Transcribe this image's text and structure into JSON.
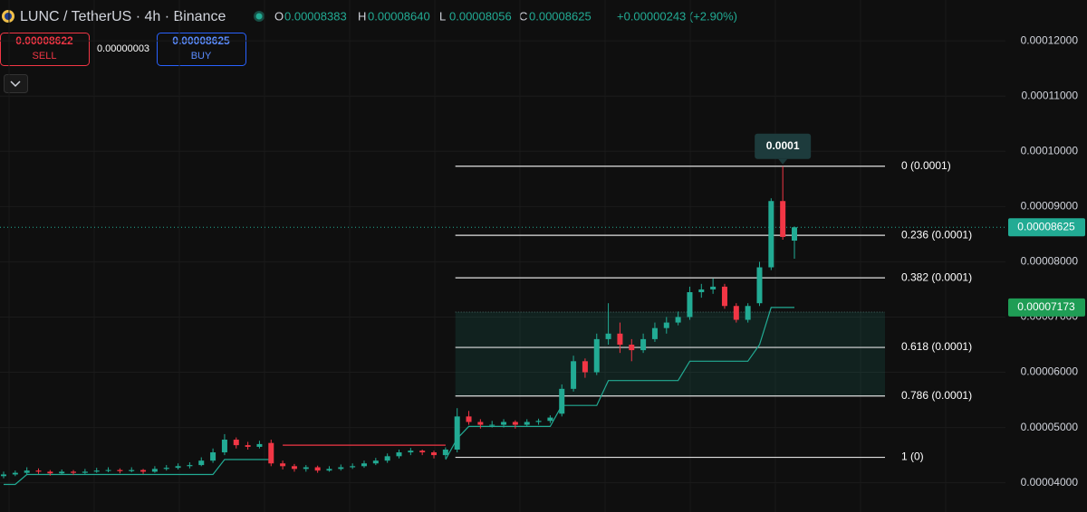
{
  "header": {
    "symbol": "LUNC / TetherUS · 4h · Binance",
    "ohlc": [
      {
        "key": "O",
        "value": "0.00008383"
      },
      {
        "key": "H",
        "value": "0.00008640"
      },
      {
        "key": "L",
        "value": "0.00008056"
      },
      {
        "key": "C",
        "value": "0.00008625"
      }
    ],
    "change": "+0.00000243 (+2.90%)",
    "sell": {
      "price": "0.00008622",
      "label": "SELL"
    },
    "spread": "0.00000003",
    "buy": {
      "price": "0.00008625",
      "label": "BUY"
    }
  },
  "chart_data": {
    "type": "candlestick",
    "up_color": "#22ab94",
    "down_color": "#f23645",
    "grid": true,
    "ylim": [
      3.47e-05,
      0.0001274
    ],
    "yticks": [
      {
        "value": 4e-05,
        "label": "0.00004000"
      },
      {
        "value": 5e-05,
        "label": "0.00005000"
      },
      {
        "value": 6e-05,
        "label": "0.00006000"
      },
      {
        "value": 7e-05,
        "label": "0.00007000"
      },
      {
        "value": 8e-05,
        "label": "0.00008000"
      },
      {
        "value": 9e-05,
        "label": "0.00009000"
      },
      {
        "value": 0.0001,
        "label": "0.00010000"
      },
      {
        "value": 0.00011,
        "label": "0.00011000"
      },
      {
        "value": 0.00012,
        "label": "0.00012000"
      }
    ],
    "candles": [
      [
        4.12e-05,
        4.2e-05,
        4.08e-05,
        4.15e-05
      ],
      [
        4.15e-05,
        4.22e-05,
        4.12e-05,
        4.18e-05
      ],
      [
        4.18e-05,
        4.28e-05,
        4.15e-05,
        4.22e-05
      ],
      [
        4.22e-05,
        4.26e-05,
        4.16e-05,
        4.2e-05
      ],
      [
        4.2e-05,
        4.23e-05,
        4.13e-05,
        4.17e-05
      ],
      [
        4.17e-05,
        4.24e-05,
        4.15e-05,
        4.2e-05
      ],
      [
        4.2e-05,
        4.23e-05,
        4.14e-05,
        4.18e-05
      ],
      [
        4.18e-05,
        4.25e-05,
        4.16e-05,
        4.2e-05
      ],
      [
        4.2e-05,
        4.27e-05,
        4.18e-05,
        4.22e-05
      ],
      [
        4.22e-05,
        4.28e-05,
        4.19e-05,
        4.23e-05
      ],
      [
        4.23e-05,
        4.26e-05,
        4.17e-05,
        4.21e-05
      ],
      [
        4.21e-05,
        4.28e-05,
        4.19e-05,
        4.23e-05
      ],
      [
        4.23e-05,
        4.25e-05,
        4.16e-05,
        4.2e-05
      ],
      [
        4.2e-05,
        4.3e-05,
        4.18e-05,
        4.25e-05
      ],
      [
        4.25e-05,
        4.32e-05,
        4.22e-05,
        4.27e-05
      ],
      [
        4.27e-05,
        4.35e-05,
        4.24e-05,
        4.3e-05
      ],
      [
        4.3e-05,
        4.37e-05,
        4.26e-05,
        4.32e-05
      ],
      [
        4.32e-05,
        4.46e-05,
        4.3e-05,
        4.4e-05
      ],
      [
        4.4e-05,
        4.62e-05,
        4.36e-05,
        4.55e-05
      ],
      [
        4.55e-05,
        4.88e-05,
        4.5e-05,
        4.78e-05
      ],
      [
        4.78e-05,
        4.82e-05,
        4.62e-05,
        4.68e-05
      ],
      [
        4.68e-05,
        4.74e-05,
        4.6e-05,
        4.65e-05
      ],
      [
        4.65e-05,
        4.76e-05,
        4.62e-05,
        4.7e-05
      ],
      [
        4.72e-05,
        4.78e-05,
        4.3e-05,
        4.35e-05
      ],
      [
        4.35e-05,
        4.4e-05,
        4.24e-05,
        4.3e-05
      ],
      [
        4.3e-05,
        4.34e-05,
        4.2e-05,
        4.25e-05
      ],
      [
        4.25e-05,
        4.32e-05,
        4.2e-05,
        4.28e-05
      ],
      [
        4.28e-05,
        4.31e-05,
        4.18e-05,
        4.22e-05
      ],
      [
        4.22e-05,
        4.3e-05,
        4.2e-05,
        4.25e-05
      ],
      [
        4.25e-05,
        4.33e-05,
        4.22e-05,
        4.28e-05
      ],
      [
        4.28e-05,
        4.35e-05,
        4.25e-05,
        4.3e-05
      ],
      [
        4.3e-05,
        4.4e-05,
        4.27e-05,
        4.35e-05
      ],
      [
        4.35e-05,
        4.45e-05,
        4.32e-05,
        4.4e-05
      ],
      [
        4.4e-05,
        4.53e-05,
        4.36e-05,
        4.48e-05
      ],
      [
        4.48e-05,
        4.6e-05,
        4.44e-05,
        4.55e-05
      ],
      [
        4.55e-05,
        4.63e-05,
        4.5e-05,
        4.58e-05
      ],
      [
        4.58e-05,
        4.6e-05,
        4.5e-05,
        4.55e-05
      ],
      [
        4.55e-05,
        4.58e-05,
        4.44e-05,
        4.5e-05
      ],
      [
        4.5e-05,
        4.64e-05,
        4.44e-05,
        4.6e-05
      ],
      [
        4.6e-05,
        5.35e-05,
        4.55e-05,
        5.2e-05
      ],
      [
        5.2e-05,
        5.3e-05,
        5.05e-05,
        5.1e-05
      ],
      [
        5.1e-05,
        5.15e-05,
        4.98e-05,
        5.05e-05
      ],
      [
        5.05e-05,
        5.12e-05,
        5e-05,
        5.05e-05
      ],
      [
        5.05e-05,
        5.15e-05,
        5e-05,
        5.1e-05
      ],
      [
        5.1e-05,
        5.13e-05,
        4.98e-05,
        5.05e-05
      ],
      [
        5.05e-05,
        5.15e-05,
        5.02e-05,
        5.1e-05
      ],
      [
        5.1e-05,
        5.16e-05,
        5.05e-05,
        5.12e-05
      ],
      [
        5.12e-05,
        5.22e-05,
        5.08e-05,
        5.18e-05
      ],
      [
        5.25e-05,
        5.78e-05,
        5.2e-05,
        5.7e-05
      ],
      [
        5.7e-05,
        6.3e-05,
        5.65e-05,
        6.2e-05
      ],
      [
        6.2e-05,
        6.25e-05,
        5.9e-05,
        6e-05
      ],
      [
        6e-05,
        6.7e-05,
        5.95e-05,
        6.6e-05
      ],
      [
        6.6e-05,
        7.25e-05,
        6.5e-05,
        6.7e-05
      ],
      [
        6.7e-05,
        6.9e-05,
        6.35e-05,
        6.5e-05
      ],
      [
        6.5e-05,
        6.6e-05,
        6.2e-05,
        6.4e-05
      ],
      [
        6.4e-05,
        6.7e-05,
        6.35e-05,
        6.6e-05
      ],
      [
        6.6e-05,
        6.9e-05,
        6.55e-05,
        6.8e-05
      ],
      [
        6.8e-05,
        7e-05,
        6.7e-05,
        6.9e-05
      ],
      [
        6.9e-05,
        7.1e-05,
        6.85e-05,
        7e-05
      ],
      [
        7e-05,
        7.55e-05,
        6.95e-05,
        7.45e-05
      ],
      [
        7.45e-05,
        7.6e-05,
        7.35e-05,
        7.5e-05
      ],
      [
        7.5e-05,
        7.7e-05,
        7.42e-05,
        7.55e-05
      ],
      [
        7.55e-05,
        7.6e-05,
        7.15e-05,
        7.2e-05
      ],
      [
        7.2e-05,
        7.25e-05,
        6.9e-05,
        6.95e-05
      ],
      [
        6.95e-05,
        7.25e-05,
        6.9e-05,
        7.2e-05
      ],
      [
        7.25e-05,
        8e-05,
        7.2e-05,
        7.9e-05
      ],
      [
        7.9e-05,
        9.15e-05,
        7.85e-05,
        9.1e-05
      ],
      [
        9.1e-05,
        9.73e-05,
        8.4e-05,
        8.45e-05
      ],
      [
        8.383e-05,
        8.64e-05,
        8.056e-05,
        8.625e-05
      ]
    ],
    "supertrend_up": {
      "color": "#22ab94",
      "values": [
        3.97e-05,
        3.97e-05,
        4.15e-05,
        4.15e-05,
        4.15e-05,
        4.15e-05,
        4.15e-05,
        4.15e-05,
        4.15e-05,
        4.15e-05,
        4.15e-05,
        4.15e-05,
        4.15e-05,
        4.15e-05,
        4.15e-05,
        4.15e-05,
        4.15e-05,
        4.15e-05,
        4.15e-05,
        4.42e-05,
        4.42e-05,
        4.42e-05,
        4.42e-05,
        4.42e-05,
        null,
        null,
        null,
        null,
        null,
        null,
        null,
        null,
        null,
        null,
        null,
        null,
        null,
        null,
        4.42e-05,
        4.8e-05,
        5.02e-05,
        5.02e-05,
        5.02e-05,
        5.02e-05,
        5.02e-05,
        5.02e-05,
        5.02e-05,
        5.02e-05,
        5.4e-05,
        5.4e-05,
        5.4e-05,
        5.4e-05,
        5.85e-05,
        5.85e-05,
        5.85e-05,
        5.85e-05,
        5.85e-05,
        5.85e-05,
        5.85e-05,
        6.2e-05,
        6.2e-05,
        6.2e-05,
        6.2e-05,
        6.2e-05,
        6.2e-05,
        6.5e-05,
        7.173e-05,
        7.173e-05,
        7.173e-05
      ]
    },
    "supertrend_down": {
      "color": "#f23645",
      "values": [
        null,
        null,
        null,
        null,
        null,
        null,
        null,
        null,
        null,
        null,
        null,
        null,
        null,
        null,
        null,
        null,
        null,
        null,
        null,
        null,
        null,
        null,
        null,
        null,
        4.68e-05,
        4.68e-05,
        4.68e-05,
        4.68e-05,
        4.68e-05,
        4.68e-05,
        4.68e-05,
        4.68e-05,
        4.68e-05,
        4.68e-05,
        4.68e-05,
        4.68e-05,
        4.68e-05,
        4.68e-05,
        4.68e-05,
        null,
        null,
        null,
        null,
        null,
        null,
        null,
        null,
        null,
        null,
        null,
        null,
        null,
        null,
        null,
        null,
        null,
        null,
        null,
        null,
        null,
        null,
        null,
        null,
        null,
        null,
        null,
        null,
        null,
        null
      ]
    },
    "zone": [
      5.57e-05,
      7.09e-05
    ],
    "fib": [
      {
        "value": 9.73e-05,
        "label": "0 (0.0001)"
      },
      {
        "value": 8.48e-05,
        "label": "0.236 (0.0001)"
      },
      {
        "value": 7.71e-05,
        "label": "0.382 (0.0001)"
      },
      {
        "value": 6.45e-05,
        "label": "0.618 (0.0001)"
      },
      {
        "value": 5.57e-05,
        "label": "0.786 (0.0001)"
      },
      {
        "value": 4.46e-05,
        "label": "1 (0)"
      }
    ],
    "high_annotation": {
      "value": 9.73e-05,
      "label": "0.0001"
    },
    "price_labels": [
      {
        "value": 8.625e-05,
        "label": "0.00008625",
        "color": "#22ab94"
      },
      {
        "value": 7.173e-05,
        "label": "0.00007173",
        "color": "#1f9d55"
      }
    ]
  }
}
